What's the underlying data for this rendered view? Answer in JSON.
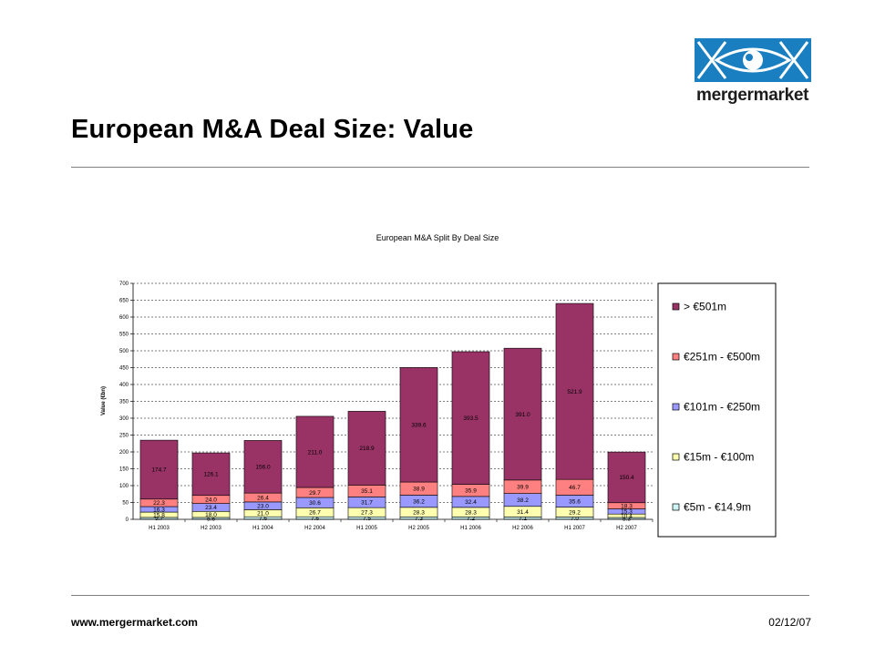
{
  "slide": {
    "title": "European M&A Deal Size: Value",
    "footer_url": "www.mergermarket.com",
    "footer_date": "02/12/07",
    "logo_text": "mergermarket"
  },
  "colors": {
    "s5m": "#cdf4f4",
    "s15m": "#ffffb0",
    "s101m": "#9999ff",
    "s251m": "#ff8080",
    "s501m": "#993366",
    "logo_blue": "#1a7fc1"
  },
  "chart_data": {
    "type": "bar",
    "stacked": true,
    "title": "European M&A Split By Deal Size",
    "ylabel": "Value (€bn)",
    "xlabel": "",
    "ylim": [
      0,
      700
    ],
    "yticks": [
      0,
      50,
      100,
      150,
      200,
      250,
      300,
      350,
      400,
      450,
      500,
      550,
      600,
      650,
      700
    ],
    "grid": true,
    "legend_position": "right",
    "categories": [
      "H1 2003",
      "H2 2003",
      "H1 2004",
      "H2 2004",
      "H1 2005",
      "H2 2005",
      "H1 2006",
      "H2 2006",
      "H1 2007",
      "H2 2007"
    ],
    "series": [
      {
        "name": "€5m - €14.9m",
        "color_key": "s5m",
        "values": [
          5.7,
          5.6,
          7.6,
          7.6,
          7.5,
          7.3,
          7.2,
          7.1,
          7.0,
          5.3
        ]
      },
      {
        "name": "€15m - €100m",
        "color_key": "s15m",
        "values": [
          15.8,
          18.0,
          21.0,
          26.7,
          27.3,
          28.3,
          28.3,
          31.4,
          29.2,
          10.4
        ]
      },
      {
        "name": "€101m - €250m",
        "color_key": "s101m",
        "values": [
          16.3,
          23.4,
          23.0,
          30.6,
          31.7,
          36.2,
          32.4,
          38.2,
          35.6,
          15.3
        ]
      },
      {
        "name": "€251m - €500m",
        "color_key": "s251m",
        "values": [
          22.3,
          24.0,
          26.4,
          29.7,
          35.1,
          38.9,
          35.9,
          39.9,
          46.7,
          18.3
        ]
      },
      {
        "name": "> €501m",
        "color_key": "s501m",
        "values": [
          174.7,
          126.1,
          156.0,
          211.0,
          218.9,
          339.6,
          393.5,
          391.0,
          521.9,
          150.4
        ]
      }
    ],
    "legend_order": [
      "> €501m",
      "€251m - €500m",
      "€101m - €250m",
      "€15m - €100m",
      "€5m - €14.9m"
    ]
  }
}
